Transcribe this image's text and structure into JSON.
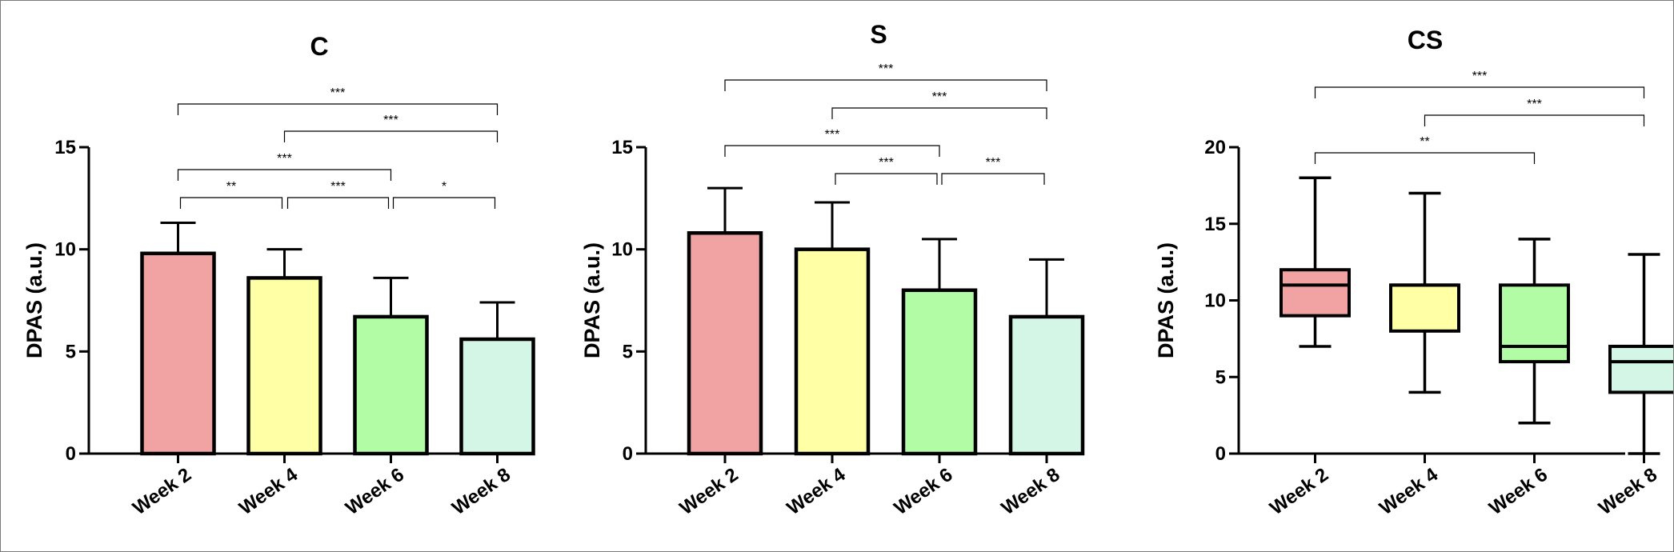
{
  "chart_data": [
    {
      "type": "bar",
      "title": "C",
      "ylabel": "DPAS (a.u.)",
      "xlabel": "",
      "categories": [
        "Week 2",
        "Week 4",
        "Week 6",
        "Week 8"
      ],
      "values": [
        9.8,
        8.6,
        6.7,
        5.6
      ],
      "error_upper": [
        11.3,
        10.0,
        8.6,
        7.4
      ],
      "ylim": [
        0,
        15
      ],
      "yticks": [
        "0",
        "5",
        "10",
        "15"
      ],
      "colors": [
        "#f1a3a3",
        "#ffffa6",
        "#b3fca6",
        "#d4f6e6"
      ],
      "significance": [
        {
          "from": 0,
          "to": 1,
          "label": "**"
        },
        {
          "from": 1,
          "to": 2,
          "label": "***"
        },
        {
          "from": 2,
          "to": 3,
          "label": "*"
        },
        {
          "from": 0,
          "to": 2,
          "label": "***"
        },
        {
          "from": 1,
          "to": 3,
          "label": "***"
        },
        {
          "from": 0,
          "to": 3,
          "label": "***"
        }
      ]
    },
    {
      "type": "bar",
      "title": "S",
      "ylabel": "DPAS (a.u.)",
      "xlabel": "",
      "categories": [
        "Week 2",
        "Week 4",
        "Week 6",
        "Week 8"
      ],
      "values": [
        10.8,
        10.0,
        8.0,
        6.7
      ],
      "error_upper": [
        13.0,
        12.3,
        10.5,
        9.5
      ],
      "ylim": [
        0,
        15
      ],
      "yticks": [
        "0",
        "5",
        "10",
        "15"
      ],
      "colors": [
        "#f1a3a3",
        "#ffffa6",
        "#b3fca6",
        "#d4f6e6"
      ],
      "significance": [
        {
          "from": 1,
          "to": 2,
          "label": "***"
        },
        {
          "from": 2,
          "to": 3,
          "label": "***"
        },
        {
          "from": 0,
          "to": 2,
          "label": "***"
        },
        {
          "from": 1,
          "to": 3,
          "label": "***"
        },
        {
          "from": 0,
          "to": 3,
          "label": "***"
        }
      ]
    },
    {
      "type": "box",
      "title": "CS",
      "ylabel": "DPAS (a.u.)",
      "xlabel": "",
      "categories": [
        "Week 2",
        "Week 4",
        "Week 6",
        "Week 8"
      ],
      "boxes": [
        {
          "min": 7,
          "q1": 9,
          "median": 11,
          "q3": 12,
          "max": 18
        },
        {
          "min": 4,
          "q1": 8,
          "median": 11,
          "q3": 11,
          "max": 17
        },
        {
          "min": 2,
          "q1": 6,
          "median": 7,
          "q3": 11,
          "max": 14
        },
        {
          "min": 0,
          "q1": 4,
          "median": 6,
          "q3": 7,
          "max": 13
        }
      ],
      "ylim": [
        0,
        20
      ],
      "yticks": [
        "0",
        "5",
        "10",
        "15",
        "20"
      ],
      "colors": [
        "#f1a3a3",
        "#ffffa6",
        "#b3fca6",
        "#d4f6e6"
      ],
      "significance": [
        {
          "from": 0,
          "to": 2,
          "label": "**"
        },
        {
          "from": 1,
          "to": 3,
          "label": "***"
        },
        {
          "from": 0,
          "to": 3,
          "label": "***"
        }
      ]
    }
  ]
}
